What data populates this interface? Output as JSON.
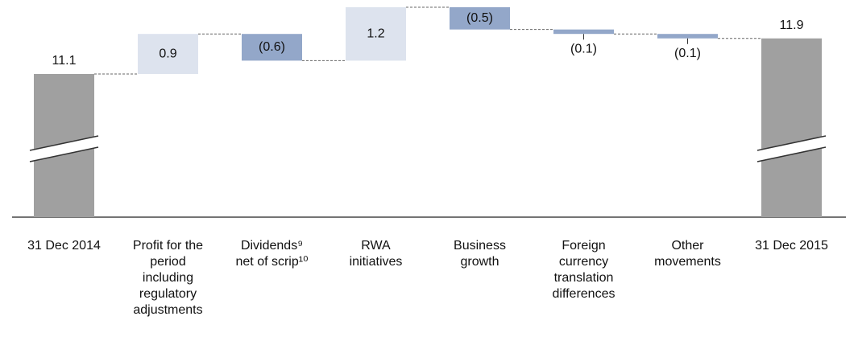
{
  "chart_data": {
    "type": "waterfall",
    "categories": [
      [
        "31 Dec 2014"
      ],
      [
        "Profit for the",
        "period",
        "including",
        "regulatory",
        "adjustments"
      ],
      [
        "Dividends⁹",
        "net of scrip¹⁰"
      ],
      [
        "RWA",
        "initiatives"
      ],
      [
        "Business",
        "growth"
      ],
      [
        "Foreign",
        "currency",
        "translation",
        "differences"
      ],
      [
        "Other",
        "movements"
      ],
      [
        "31 Dec 2015"
      ]
    ],
    "values": [
      11.1,
      0.9,
      -0.6,
      1.2,
      -0.5,
      -0.1,
      -0.1,
      11.9
    ],
    "value_labels": [
      "11.1",
      "0.9",
      "(0.6)",
      "1.2",
      "(0.5)",
      "(0.1)",
      "(0.1)",
      "11.9"
    ],
    "is_total": [
      true,
      false,
      false,
      false,
      false,
      false,
      false,
      true
    ],
    "total_color": "#a0a0a0",
    "increase_color": "#dde3ee",
    "decrease_color": "#93a7c9"
  }
}
